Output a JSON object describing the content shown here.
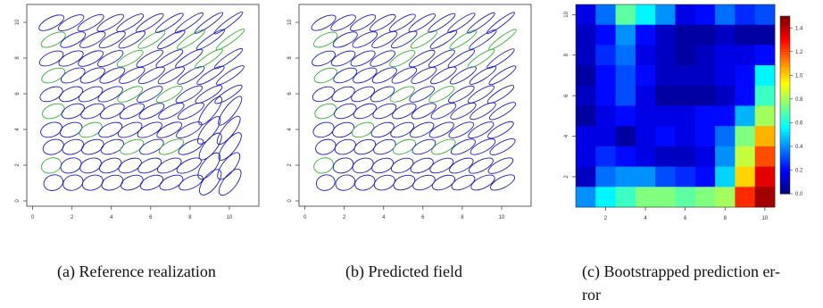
{
  "captions": {
    "a": "(a) Reference realization",
    "b": "(b) Predicted field",
    "c_line1": "(c) Bootstrapped prediction er-",
    "c_line2": "ror"
  },
  "colors": {
    "ellipse_main": "#1a1acc",
    "ellipse_highlight": "#33b033",
    "frame": "#333333"
  },
  "chart_data": [
    {
      "type": "scatter",
      "subtype": "tensor-ellipse-field",
      "panel": "a",
      "x_ticks": [
        0,
        2,
        4,
        6,
        8,
        10
      ],
      "y_ticks": [
        0,
        2,
        4,
        6,
        8,
        10
      ],
      "xlim": [
        -0.3,
        11.5
      ],
      "ylim": [
        -0.3,
        11.0
      ],
      "grid_x": [
        1,
        2,
        3,
        4,
        5,
        6,
        7,
        8,
        9,
        10
      ],
      "grid_y": [
        1,
        2,
        3,
        4,
        5,
        6,
        7,
        8,
        9,
        10
      ],
      "highlight": [
        [
          1,
          2
        ],
        [
          1,
          5
        ],
        [
          1,
          7
        ],
        [
          1,
          9
        ],
        [
          3,
          4
        ],
        [
          5,
          3
        ],
        [
          5,
          6
        ],
        [
          5,
          8
        ],
        [
          6,
          9
        ],
        [
          7,
          3
        ],
        [
          7,
          6
        ],
        [
          8,
          9
        ],
        [
          9,
          8
        ],
        [
          10,
          9
        ]
      ]
    },
    {
      "type": "scatter",
      "subtype": "tensor-ellipse-field",
      "panel": "b",
      "x_ticks": [
        0,
        2,
        4,
        6,
        8,
        10
      ],
      "y_ticks": [
        0,
        2,
        4,
        6,
        8,
        10
      ],
      "xlim": [
        -0.3,
        11.5
      ],
      "ylim": [
        -0.3,
        11.0
      ],
      "grid_x": [
        1,
        2,
        3,
        4,
        5,
        6,
        7,
        8,
        9,
        10
      ],
      "grid_y": [
        1,
        2,
        3,
        4,
        5,
        6,
        7,
        8,
        9,
        10
      ],
      "highlight": [
        [
          1,
          2
        ],
        [
          1,
          5
        ],
        [
          1,
          7
        ],
        [
          1,
          9
        ],
        [
          3,
          4
        ],
        [
          5,
          3
        ],
        [
          5,
          6
        ],
        [
          5,
          8
        ],
        [
          6,
          9
        ],
        [
          7,
          3
        ],
        [
          7,
          6
        ],
        [
          8,
          9
        ],
        [
          9,
          8
        ],
        [
          10,
          9
        ]
      ]
    },
    {
      "type": "heatmap",
      "panel": "c",
      "x_ticks": [
        2,
        4,
        6,
        8,
        10
      ],
      "y_ticks": [
        2,
        4,
        6,
        8,
        10
      ],
      "colorbar_ticks": [
        0.0,
        0.2,
        0.4,
        0.6,
        0.8,
        1.0,
        1.2,
        1.4
      ],
      "vmin": 0.0,
      "vmax": 1.5,
      "rows_top_to_bottom": [
        [
          0.15,
          0.35,
          0.7,
          0.55,
          0.4,
          0.15,
          0.2,
          0.35,
          0.25,
          0.3
        ],
        [
          0.1,
          0.2,
          0.4,
          0.2,
          0.1,
          0.05,
          0.05,
          0.1,
          0.05,
          0.05
        ],
        [
          0.1,
          0.25,
          0.35,
          0.15,
          0.1,
          0.05,
          0.1,
          0.15,
          0.15,
          0.2
        ],
        [
          0.05,
          0.2,
          0.3,
          0.2,
          0.1,
          0.1,
          0.1,
          0.15,
          0.2,
          0.55
        ],
        [
          0.1,
          0.2,
          0.3,
          0.15,
          0.05,
          0.05,
          0.05,
          0.1,
          0.2,
          0.65
        ],
        [
          0.05,
          0.15,
          0.2,
          0.15,
          0.15,
          0.15,
          0.2,
          0.2,
          0.45,
          0.8
        ],
        [
          0.15,
          0.15,
          0.05,
          0.15,
          0.2,
          0.15,
          0.2,
          0.35,
          0.75,
          1.05
        ],
        [
          0.15,
          0.25,
          0.2,
          0.15,
          0.1,
          0.1,
          0.15,
          0.4,
          0.85,
          1.2
        ],
        [
          0.1,
          0.35,
          0.4,
          0.4,
          0.3,
          0.25,
          0.2,
          0.5,
          1.0,
          1.35
        ],
        [
          0.4,
          0.55,
          0.65,
          0.75,
          0.75,
          0.7,
          0.75,
          0.8,
          1.25,
          1.45
        ]
      ]
    }
  ]
}
